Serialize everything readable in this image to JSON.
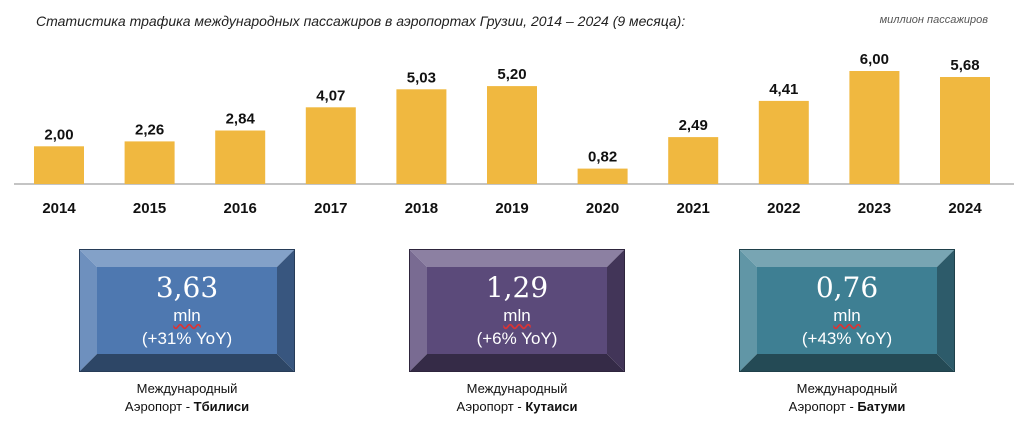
{
  "header": {
    "title": "Статистика трафика международных пассажиров в аэропортах Грузии, 2014 – 2024 (9 месяца):",
    "units": "миллион пассажиров"
  },
  "colors": {
    "bar": "#F0B840",
    "tbilisi": "#4E78B0",
    "kutaisi": "#5B4A7A",
    "batumi": "#3E7F93"
  },
  "chart_data": {
    "type": "bar",
    "title": "Статистика трафика международных пассажиров в аэропортах Грузии, 2014 – 2024 (9 месяца):",
    "ylabel": "миллион пассажиров",
    "categories": [
      "2014",
      "2015",
      "2016",
      "2017",
      "2018",
      "2019",
      "2020",
      "2021",
      "2022",
      "2023",
      "2024"
    ],
    "values": [
      2.0,
      2.26,
      2.84,
      4.07,
      5.03,
      5.2,
      0.82,
      2.49,
      4.41,
      6.0,
      5.68
    ],
    "value_labels": [
      "2,00",
      "2,26",
      "2,84",
      "4,07",
      "5,03",
      "5,20",
      "0,82",
      "2,49",
      "4,41",
      "6,00",
      "5,68"
    ],
    "ylim": [
      0,
      6.0
    ],
    "grid": false
  },
  "cards": [
    {
      "value": "3,63",
      "unit": "mln",
      "yoy": "(+31% YoY)",
      "caption_line1": "Международный",
      "caption_prefix": "Аэропорт - ",
      "caption_city": "Тбилиси"
    },
    {
      "value": "1,29",
      "unit": "mln",
      "yoy": "(+6% YoY)",
      "caption_line1": "Международный",
      "caption_prefix": "Аэропорт - ",
      "caption_city": "Кутаиси"
    },
    {
      "value": "0,76",
      "unit": "mln",
      "yoy": "(+43% YoY)",
      "caption_line1": "Международный",
      "caption_prefix": "Аэропорт - ",
      "caption_city": "Батуми"
    }
  ]
}
